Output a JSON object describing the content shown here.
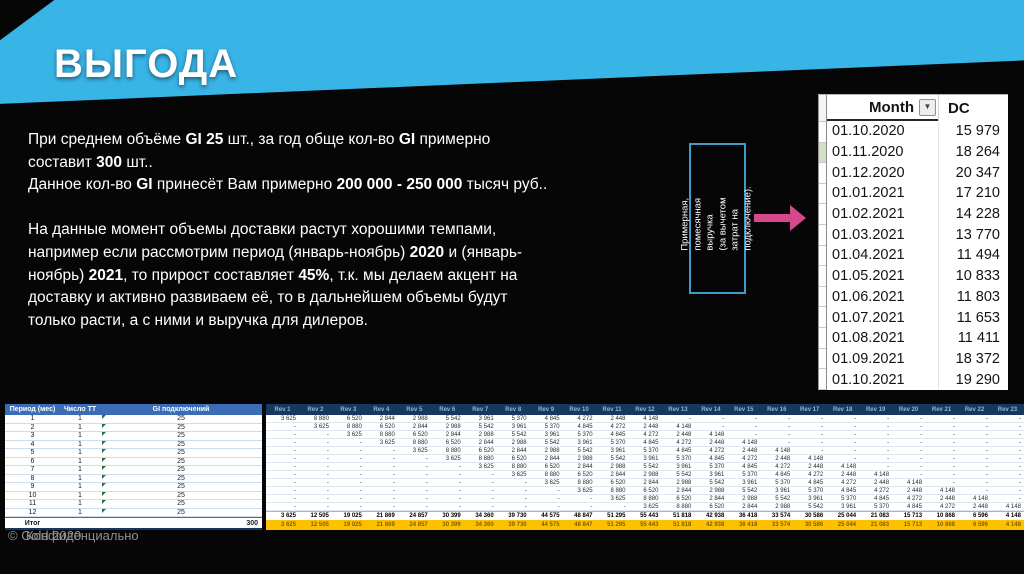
{
  "title": "ВЫГОДА",
  "colors": {
    "banner": "#39b4e6",
    "arrow": "#d6478b",
    "callout_border": "#3d9dc8",
    "period_header_bg": "#3a6db5",
    "rev_header_bg": "#17375e",
    "rev_header_text": "#95b3d7",
    "highlight_row_bg": "#ffc000",
    "highlight_row_text": "#7d6000"
  },
  "body_text": {
    "lines": [
      [
        {
          "t": "При среднем объёме "
        },
        {
          "t": "GI 25",
          "b": true
        },
        {
          "t": " шт., за год обще кол-во "
        },
        {
          "t": "GI",
          "b": true
        },
        {
          "t": " примерно"
        }
      ],
      [
        {
          "t": "составит "
        },
        {
          "t": "300",
          "b": true
        },
        {
          "t": " шт.."
        }
      ],
      [
        {
          "t": "Данное кол-во "
        },
        {
          "t": "GI",
          "b": true
        },
        {
          "t": " принесёт Вам примерно "
        },
        {
          "t": "200 000 - 250 000",
          "b": true
        },
        {
          "t": " тысяч руб.."
        }
      ],
      [],
      [
        {
          "t": "На данные момент объемы доставки растут хорошими темпами,"
        }
      ],
      [
        {
          "t": "например если рассмотрим период (январь-ноябрь) "
        },
        {
          "t": "2020",
          "b": true
        },
        {
          "t": " и (январь-"
        }
      ],
      [
        {
          "t": "ноябрь) "
        },
        {
          "t": "2021",
          "b": true
        },
        {
          "t": ", то прирост составляет "
        },
        {
          "t": "45%",
          "b": true
        },
        {
          "t": ", т.к. мы делаем акцент на"
        }
      ],
      [
        {
          "t": "доставку и активно развиваем её, то в дальнейшем объемы будут"
        }
      ],
      [
        {
          "t": "только расти, а с ними и выручка для дилеров."
        }
      ]
    ]
  },
  "callout": {
    "lines": [
      "Примерная,",
      "помесячная выручка",
      "(за вычетом затрат на",
      "подключение)."
    ]
  },
  "arrow_icon": "right-arrow",
  "monthly_table": {
    "col_month": "Month",
    "col_dc": "DC",
    "filter_icon": "▼",
    "green_gutter_row_index": 2,
    "rows": [
      [
        "01.10.2020",
        "15 979"
      ],
      [
        "01.11.2020",
        "18 264"
      ],
      [
        "01.12.2020",
        "20 347"
      ],
      [
        "01.01.2021",
        "17 210"
      ],
      [
        "01.02.2021",
        "14 228"
      ],
      [
        "01.03.2021",
        "13 770"
      ],
      [
        "01.04.2021",
        "11 494"
      ],
      [
        "01.05.2021",
        "10 833"
      ],
      [
        "01.06.2021",
        "11 803"
      ],
      [
        "01.07.2021",
        "11 653"
      ],
      [
        "01.08.2021",
        "11 411"
      ],
      [
        "01.09.2021",
        "18 372"
      ],
      [
        "01.10.2021",
        "19 290"
      ]
    ]
  },
  "period_table": {
    "headers": [
      "Период (мес)",
      "Число ТТ",
      "GI подключений"
    ],
    "rows": [
      [
        "1",
        "1",
        "25"
      ],
      [
        "2",
        "1",
        "25"
      ],
      [
        "3",
        "1",
        "25"
      ],
      [
        "4",
        "1",
        "25"
      ],
      [
        "5",
        "1",
        "25"
      ],
      [
        "6",
        "1",
        "25"
      ],
      [
        "7",
        "1",
        "25"
      ],
      [
        "8",
        "1",
        "25"
      ],
      [
        "9",
        "1",
        "25"
      ],
      [
        "10",
        "1",
        "25"
      ],
      [
        "11",
        "1",
        "25"
      ],
      [
        "12",
        "1",
        "25"
      ]
    ],
    "total_label": "Итог",
    "total_value": "300"
  },
  "rev_table": {
    "headers": [
      "Rev 1",
      "Rev 2",
      "Rev 3",
      "Rev 4",
      "Rev 5",
      "Rev 6",
      "Rev 7",
      "Rev 8",
      "Rev 9",
      "Rev 10",
      "Rev 11",
      "Rev 12",
      "Rev 13",
      "Rev 14",
      "Rev 15",
      "Rev 16",
      "Rev 17",
      "Rev 18",
      "Rev 19",
      "Rev 20",
      "Rev 21",
      "Rev 22",
      "Rev 23"
    ],
    "num_rows": 12,
    "empty_cell": "-",
    "sequence": [
      "3 625",
      "8 880",
      "6 520",
      "2 844",
      "2 988",
      "5 542",
      "3 961",
      "5 370",
      "4 845",
      "4 272",
      "2 448",
      "4 148"
    ],
    "totals": [
      "3 625",
      "12 505",
      "19 025",
      "21 869",
      "24 857",
      "30 399",
      "34 360",
      "39 730",
      "44 575",
      "48 847",
      "51 295",
      "55 443",
      "51 818",
      "42 938",
      "36 418",
      "33 574",
      "30 586",
      "25 044",
      "21 083",
      "15 713",
      "10 868",
      "6 596",
      "4 148"
    ]
  },
  "footer": {
    "line1": "© Gold 2020",
    "line2": "Конфиденциально"
  }
}
